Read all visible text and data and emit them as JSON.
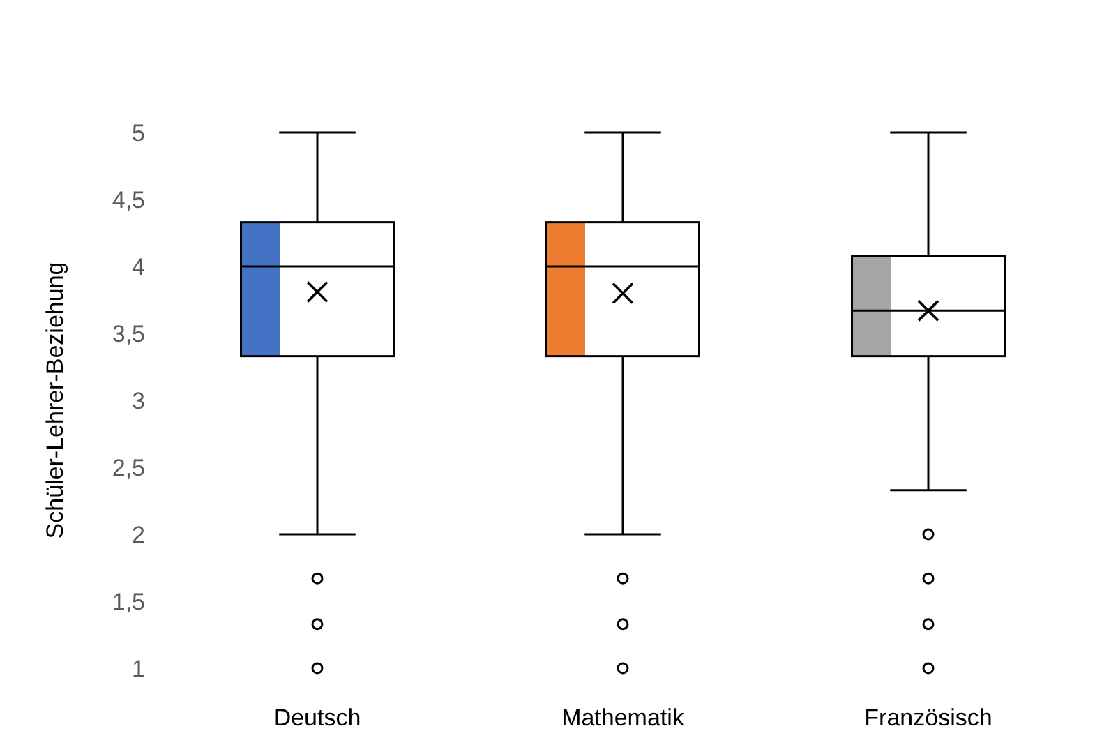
{
  "chart_data": {
    "type": "box",
    "ylabel": "Schüler-Lehrer-Beziehung",
    "categories": [
      "Deutsch",
      "Mathematik",
      "Französisch"
    ],
    "colors": [
      "#4472c4",
      "#ed7d31",
      "#a5a5a5"
    ],
    "boxes": [
      {
        "low": 2,
        "q1": 3.33,
        "median": 4,
        "q3": 4.33,
        "high": 5,
        "mean": 3.81,
        "outliers": [
          1.67,
          1.33,
          1
        ]
      },
      {
        "low": 2,
        "q1": 3.33,
        "median": 4,
        "q3": 4.33,
        "high": 5,
        "mean": 3.8,
        "outliers": [
          1.67,
          1.33,
          1
        ]
      },
      {
        "low": 2.33,
        "q1": 3.33,
        "median": 3.67,
        "q3": 4.08,
        "high": 5,
        "mean": 3.67,
        "outliers": [
          2,
          1.67,
          1.33,
          1
        ]
      }
    ],
    "ylim": [
      1,
      5
    ],
    "yticks": [
      1,
      {
        "value": 1.5,
        "label": "1,5"
      },
      2,
      {
        "value": 2.5,
        "label": "2,5"
      },
      3,
      {
        "value": 3.5,
        "label": "3,5"
      },
      4,
      {
        "value": 4.5,
        "label": "4,5"
      },
      5
    ],
    "grid": false,
    "marker": "cross"
  }
}
